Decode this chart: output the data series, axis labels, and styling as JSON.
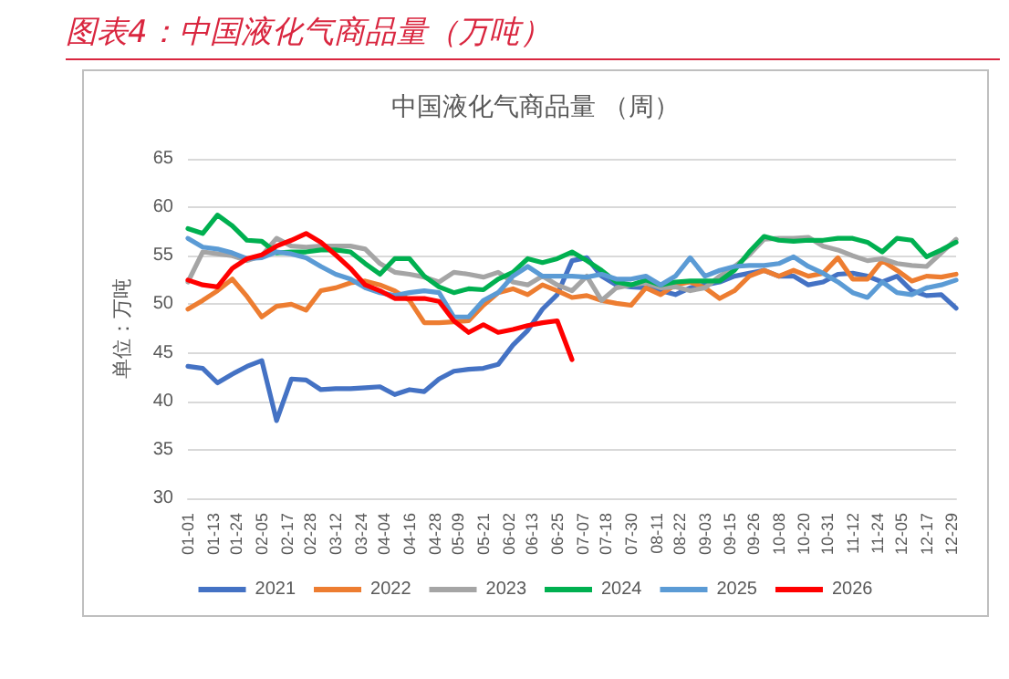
{
  "chart_data": {
    "type": "line",
    "title": "图表4：中国液化气商品量（万吨）",
    "subtitle": "中国液化气商品量 （周）",
    "ylabel": "单位：万吨",
    "x": [
      "--01-01",
      "--01-08",
      "--01-15",
      "--01-22",
      "--01-29",
      "--02-05",
      "--02-12",
      "--02-19",
      "--02-26",
      "--03-05",
      "--03-12",
      "--03-19",
      "--03-26",
      "--04-02",
      "--04-09",
      "--04-16",
      "--04-23",
      "--04-30",
      "--05-07",
      "--05-14",
      "--05-21",
      "--05-28",
      "--06-04",
      "--06-11",
      "--06-18",
      "--06-25",
      "--07-02",
      "--07-09",
      "--07-16",
      "--07-23",
      "--07-30",
      "--08-06",
      "--08-13",
      "--08-20",
      "--08-27",
      "--09-03",
      "--09-10",
      "--09-17",
      "--09-24",
      "--10-01",
      "--10-08",
      "--10-15",
      "--10-22",
      "--10-29",
      "--11-05",
      "--11-12",
      "--11-19",
      "--11-26",
      "--12-03",
      "--12-10",
      "--12-17",
      "--12-24",
      "--12-31"
    ],
    "xlim": [
      "--01-01",
      "--12-31"
    ],
    "xticks": [
      {
        "value": "--01-01",
        "label": "01-01"
      },
      {
        "value": "--01-13",
        "label": "01-13"
      },
      {
        "value": "--01-24",
        "label": "01-24"
      },
      {
        "value": "--02-05",
        "label": "02-05"
      },
      {
        "value": "--02-17",
        "label": "02-17"
      },
      {
        "value": "--02-28",
        "label": "02-28"
      },
      {
        "value": "--03-12",
        "label": "03-12"
      },
      {
        "value": "--03-24",
        "label": "03-24"
      },
      {
        "value": "--04-04",
        "label": "04-04"
      },
      {
        "value": "--04-16",
        "label": "04-16"
      },
      {
        "value": "--04-28",
        "label": "04-28"
      },
      {
        "value": "--05-09",
        "label": "05-09"
      },
      {
        "value": "--05-21",
        "label": "05-21"
      },
      {
        "value": "--06-02",
        "label": "06-02"
      },
      {
        "value": "--06-13",
        "label": "06-13"
      },
      {
        "value": "--06-25",
        "label": "06-25"
      },
      {
        "value": "--07-07",
        "label": "07-07"
      },
      {
        "value": "--07-18",
        "label": "07-18"
      },
      {
        "value": "--07-30",
        "label": "07-30"
      },
      {
        "value": "--08-11",
        "label": "08-11"
      },
      {
        "value": "--08-22",
        "label": "08-22"
      },
      {
        "value": "--09-03",
        "label": "09-03"
      },
      {
        "value": "--09-15",
        "label": "09-15"
      },
      {
        "value": "--09-26",
        "label": "09-26"
      },
      {
        "value": "--10-08",
        "label": "10-08"
      },
      {
        "value": "--10-20",
        "label": "10-20"
      },
      {
        "value": "--10-31",
        "label": "10-31"
      },
      {
        "value": "--11-12",
        "label": "11-12"
      },
      {
        "value": "--11-24",
        "label": "11-24"
      },
      {
        "value": "--12-05",
        "label": "12-05"
      },
      {
        "value": "--12-17",
        "label": "12-17"
      },
      {
        "value": "--12-29",
        "label": "12-29"
      }
    ],
    "ylim": [
      30,
      65
    ],
    "yticks": [
      30,
      35,
      40,
      45,
      50,
      55,
      60,
      65
    ],
    "grid": "y",
    "legend": "bottom",
    "marker": "none",
    "line_style": "solid",
    "series": [
      {
        "name": "2021",
        "color": "#4472c4",
        "values": [
          43.6,
          43.4,
          41.9,
          42.8,
          43.6,
          44.2,
          38.0,
          42.3,
          42.2,
          41.2,
          41.3,
          41.3,
          41.4,
          41.5,
          40.7,
          41.2,
          41.0,
          42.3,
          43.1,
          43.3,
          43.4,
          43.8,
          45.8,
          47.3,
          49.5,
          51.0,
          54.5,
          54.8,
          52.9,
          52.0,
          51.8,
          51.7,
          51.4,
          51.0,
          51.7,
          52.0,
          52.3,
          52.9,
          53.2,
          53.5,
          52.9,
          52.9,
          52.0,
          52.3,
          53.1,
          53.2,
          52.9,
          52.3,
          52.9,
          51.4,
          50.9,
          51.0,
          49.6
        ]
      },
      {
        "name": "2022",
        "color": "#ed7d31",
        "values": [
          49.5,
          50.4,
          51.4,
          52.6,
          50.8,
          48.7,
          49.8,
          50.0,
          49.4,
          51.4,
          51.7,
          52.2,
          52.4,
          52.0,
          51.4,
          50.4,
          48.1,
          48.1,
          48.2,
          48.3,
          49.9,
          51.2,
          51.6,
          51.0,
          52.0,
          51.4,
          50.7,
          50.9,
          50.4,
          50.1,
          49.9,
          51.7,
          51.0,
          52.0,
          52.3,
          51.7,
          50.6,
          51.4,
          52.9,
          53.5,
          52.9,
          53.5,
          52.9,
          53.2,
          54.8,
          52.6,
          52.6,
          54.5,
          53.5,
          52.4,
          52.9,
          52.8,
          53.1
        ]
      },
      {
        "name": "2023",
        "color": "#a5a5a5",
        "values": [
          52.3,
          55.4,
          55.2,
          55.0,
          54.5,
          55.0,
          56.8,
          56.0,
          55.9,
          56.0,
          56.0,
          56.0,
          55.7,
          54.2,
          53.3,
          53.1,
          52.8,
          52.3,
          53.3,
          53.1,
          52.8,
          53.3,
          52.3,
          52.0,
          52.9,
          52.0,
          51.4,
          52.9,
          50.4,
          51.7,
          52.0,
          52.2,
          51.7,
          51.8,
          51.4,
          51.7,
          52.9,
          53.9,
          55.1,
          56.7,
          56.8,
          56.8,
          56.9,
          56.0,
          55.6,
          55.0,
          54.5,
          54.7,
          54.2,
          54.0,
          53.9,
          55.3,
          56.7
        ]
      },
      {
        "name": "2024",
        "color": "#00b050",
        "values": [
          57.8,
          57.3,
          59.2,
          58.1,
          56.6,
          56.5,
          55.3,
          55.4,
          55.4,
          55.6,
          55.6,
          55.4,
          54.2,
          53.1,
          54.7,
          54.7,
          52.9,
          51.8,
          51.2,
          51.6,
          51.5,
          52.6,
          53.3,
          54.7,
          54.3,
          54.7,
          55.4,
          54.5,
          53.5,
          52.3,
          52.0,
          52.5,
          52.0,
          52.3,
          52.4,
          52.4,
          52.4,
          53.5,
          55.4,
          57.0,
          56.6,
          56.5,
          56.6,
          56.6,
          56.8,
          56.8,
          56.4,
          55.4,
          56.8,
          56.6,
          54.9,
          55.6,
          56.4
        ]
      },
      {
        "name": "2025",
        "color": "#5b9bd5",
        "values": [
          56.8,
          55.9,
          55.7,
          55.3,
          54.7,
          54.8,
          55.4,
          55.2,
          54.8,
          53.9,
          53.1,
          52.6,
          51.7,
          51.2,
          50.9,
          51.2,
          51.4,
          51.2,
          48.7,
          48.7,
          50.4,
          51.2,
          52.9,
          53.9,
          52.9,
          52.9,
          52.9,
          52.8,
          53.1,
          52.6,
          52.6,
          52.9,
          52.0,
          52.9,
          54.8,
          52.9,
          53.5,
          53.9,
          54.0,
          54.0,
          54.2,
          54.9,
          53.9,
          53.2,
          52.3,
          51.2,
          50.7,
          52.3,
          51.2,
          51.0,
          51.7,
          52.0,
          52.5
        ]
      },
      {
        "name": "2026",
        "color": "#ff0000",
        "values": [
          52.5,
          52.0,
          51.8,
          53.7,
          54.7,
          55.1,
          56.0,
          56.6,
          57.3,
          56.4,
          55.1,
          53.7,
          52.0,
          51.4,
          50.6,
          50.6,
          50.6,
          50.3,
          48.3,
          47.1,
          47.9,
          47.1,
          47.4,
          47.8,
          48.1,
          48.3,
          44.3,
          null,
          null,
          null,
          null,
          null,
          null,
          null,
          null,
          null,
          null,
          null,
          null,
          null,
          null,
          null,
          null,
          null,
          null,
          null,
          null,
          null,
          null,
          null,
          null,
          null,
          null
        ]
      }
    ]
  }
}
